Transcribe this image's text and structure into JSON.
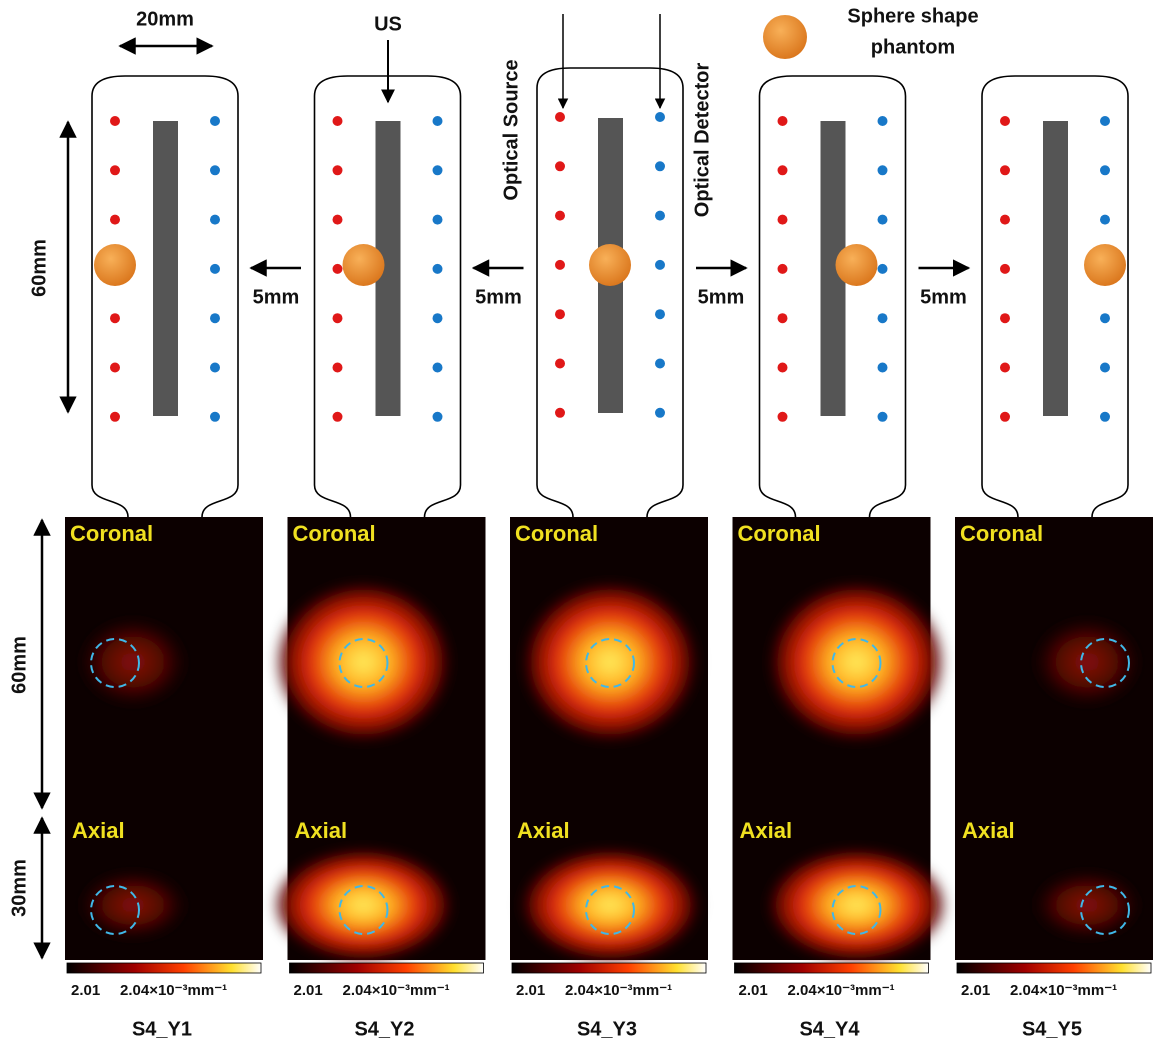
{
  "labels": {
    "width": "20mm",
    "us": "US",
    "source": "Optical Source",
    "detector": "Optical Detector",
    "sphere_line1": "Sphere shape",
    "sphere_line2": "phantom",
    "probe_height": "60mm",
    "image_height": "60mm",
    "axial_height": "30mm"
  },
  "shifts": [
    "5mm",
    "5mm",
    "5mm",
    "5mm"
  ],
  "panels": [
    {
      "name": "S4_Y1",
      "coronal": "Coronal",
      "axial": "Axial",
      "cbar_min": "2.01",
      "cbar_max": "2.04×10⁻³mm⁻¹"
    },
    {
      "name": "S4_Y2",
      "coronal": "Coronal",
      "axial": "Axial",
      "cbar_min": "2.01",
      "cbar_max": "2.04×10⁻³mm⁻¹"
    },
    {
      "name": "S4_Y3",
      "coronal": "Coronal",
      "axial": "Axial",
      "cbar_min": "2.01",
      "cbar_max": "2.04×10⁻³mm⁻¹"
    },
    {
      "name": "S4_Y4",
      "coronal": "Coronal",
      "axial": "Axial",
      "cbar_min": "2.01",
      "cbar_max": "2.04×10⁻³mm⁻¹"
    },
    {
      "name": "S4_Y5",
      "coronal": "Coronal",
      "axial": "Axial",
      "cbar_min": "2.01",
      "cbar_max": "2.04×10⁻³mm⁻¹"
    }
  ]
}
